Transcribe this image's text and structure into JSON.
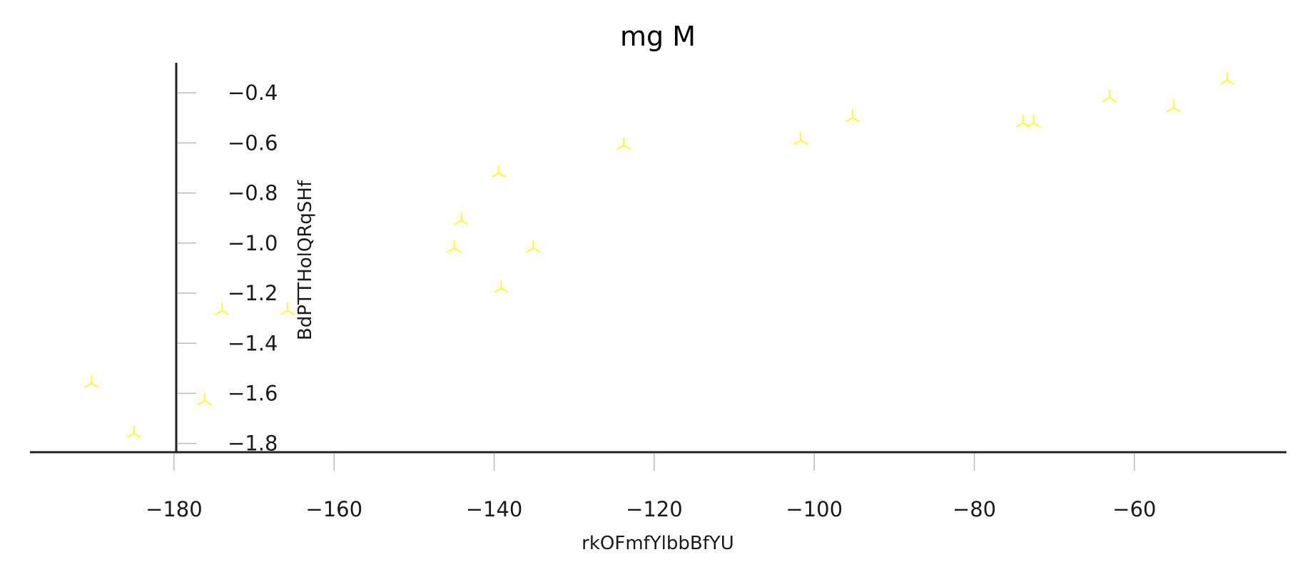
{
  "chart_data": {
    "type": "scatter",
    "title": "mg M",
    "xlabel": "rkOFmfYlbbBfYU",
    "ylabel": "BdPTTHolQRqSHf",
    "xlim": [
      -198,
      -41
    ],
    "ylim": [
      -1.835,
      -0.28
    ],
    "xticks": [
      -180,
      -160,
      -140,
      -120,
      -100,
      -80,
      -60
    ],
    "yticks": [
      -1.8,
      -1.6,
      -1.4,
      -1.2,
      -1.0,
      -0.8,
      -0.6,
      -0.4
    ],
    "xtick_labels": [
      "−180",
      "−160",
      "−140",
      "−120",
      "−100",
      "−80",
      "−60"
    ],
    "ytick_labels": [
      "−1.8",
      "−1.6",
      "−1.4",
      "−1.2",
      "−1.0",
      "−0.8",
      "−0.6",
      "−0.4"
    ],
    "grid": false,
    "marker": "tri-down",
    "color": "#ffff00",
    "series": [
      {
        "x": [
          -190.3,
          -185.0,
          -176.2,
          -174.0,
          -165.8,
          -145.0,
          -144.1,
          -139.4,
          -139.1,
          -135.1,
          -123.8,
          -101.7,
          -95.2,
          -73.9,
          -72.6,
          -63.1,
          -55.1,
          -48.4
        ],
        "y": [
          -1.56,
          -1.76,
          -1.63,
          -1.27,
          -1.27,
          -1.02,
          -0.91,
          -0.72,
          -1.18,
          -1.02,
          -0.61,
          -0.59,
          -0.5,
          -0.52,
          -0.52,
          -0.42,
          -0.46,
          -0.35
        ]
      }
    ]
  }
}
